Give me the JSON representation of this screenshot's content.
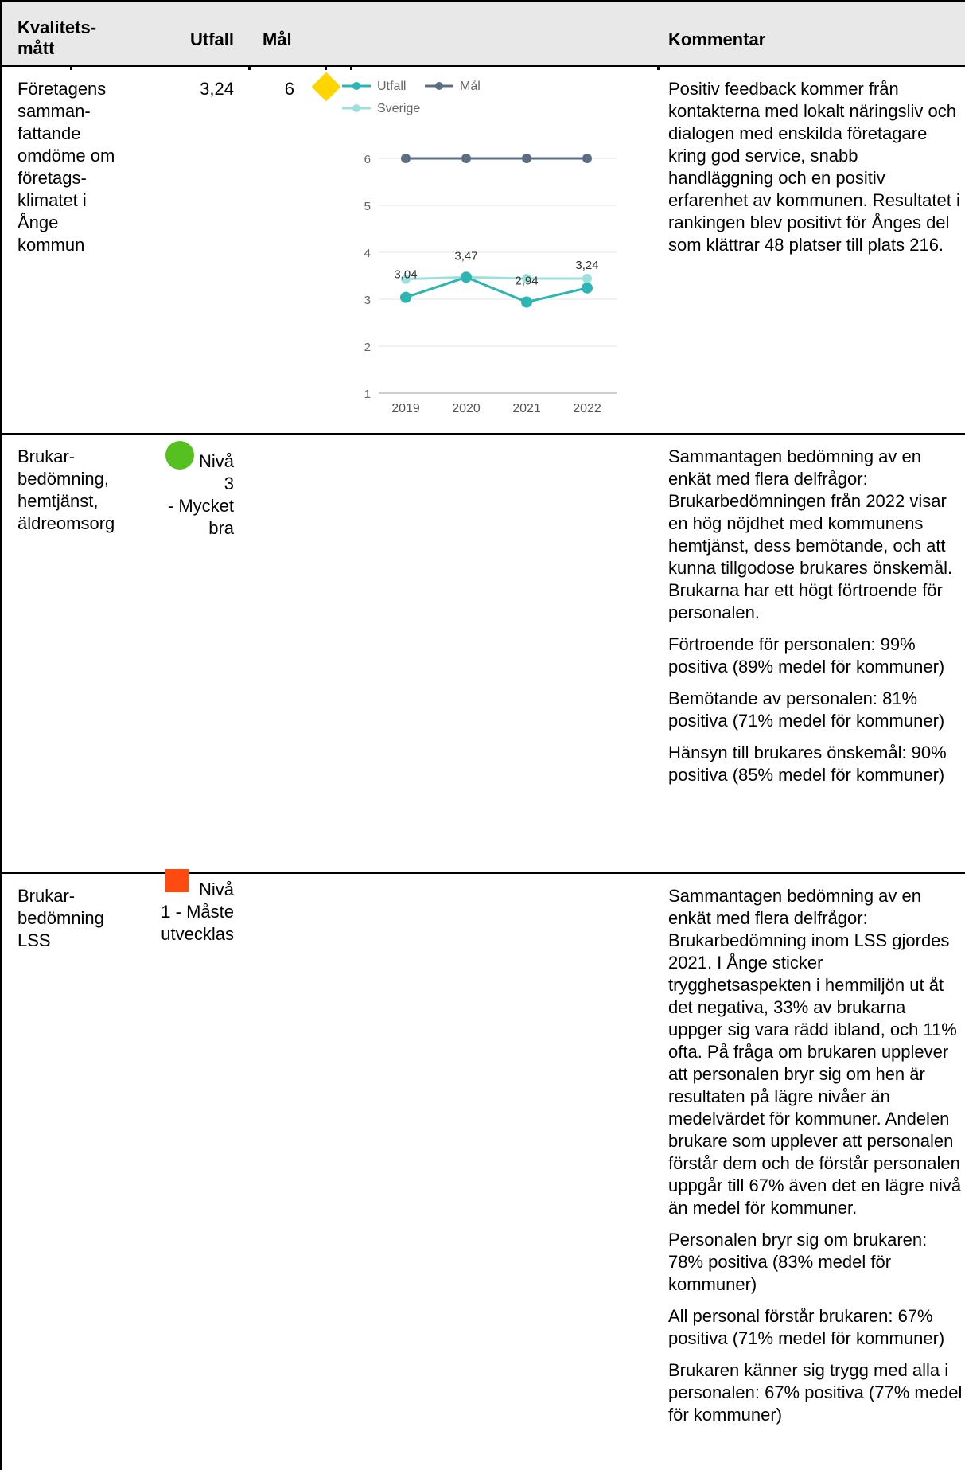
{
  "header": {
    "measure": "Kvalitets-\nmått",
    "outcome": "Utfall",
    "target": "Mål",
    "comment": "Kommentar"
  },
  "rows": [
    {
      "measure": "Företagens\nsamman-\nfattande\nomdöme om\nföretags-\nklimatet i\nÅnge\nkommun",
      "outcome": "3,24",
      "target": "6",
      "status_icon": "yellow-diamond-icon",
      "comment": [
        "Positiv feedback kommer från kontakterna med lokalt näringsliv och dialogen med enskilda företagare kring god service, snabb handläggning och en positiv erfarenhet av kommunen. Resultatet i rankingen blev positivt för Ånges del som klättrar 48 platser till plats 216."
      ]
    },
    {
      "measure": "Brukar-\nbedömning,\nhemtjänst,\näldreomsorg",
      "outcome": "Nivå\n3\n- Mycket\nbra",
      "status_icon": "green-circle-icon",
      "comment": [
        "Sammantagen bedömning av en enkät med flera delfrågor: Brukarbedömningen från 2022 visar en hög nöjdhet med kommunens hemtjänst, dess bemötande, och att kunna tillgodose brukares önskemål. Brukarna har ett högt förtroende för personalen.",
        "Förtroende för personalen: 99% positiva (89% medel för kommuner)",
        "Bemötande av personalen: 81% positiva (71% medel för kommuner)",
        "Hänsyn till brukares önskemål: 90% positiva (85% medel för kommuner)"
      ]
    },
    {
      "measure": "Brukar-\nbedömning\nLSS",
      "outcome": "Nivå\n1 - Måste\nutvecklas",
      "status_icon": "red-square-icon",
      "comment": [
        "Sammantagen bedömning av en enkät med flera delfrågor: Brukarbedömning inom LSS gjordes 2021. I Ånge sticker trygghetsaspekten i hemmiljön ut åt det negativa, 33% av brukarna uppger sig vara rädd ibland, och 11% ofta. På fråga om brukaren upplever att personalen bryr sig om hen är resultaten på lägre nivåer än medelvärdet för kommuner. Andelen brukare som upplever att personalen förstår dem och de förstår personalen uppgår till 67% även det en lägre nivå än medel för kommuner.",
        "Personalen bryr sig om brukaren: 78% positiva (83% medel för kommuner)",
        "All personal förstår brukaren: 67% positiva (71% medel för kommuner)",
        "Brukaren känner sig trygg med alla i personalen: 67% positiva (77% medel för kommuner)"
      ]
    }
  ],
  "colors": {
    "utfall": "#2bb5b3",
    "mal": "#5b6e86",
    "sverige": "#9ee0dc",
    "status_yellow": "#ffd500",
    "status_green": "#55c01f",
    "status_red": "#ff4a10"
  },
  "chart_data": {
    "type": "line",
    "x": [
      "2019",
      "2020",
      "2021",
      "2022"
    ],
    "ylim": [
      1,
      6
    ],
    "yticks": [
      "1",
      "2",
      "3",
      "4",
      "5",
      "6"
    ],
    "legend_position": "top-left",
    "series": [
      {
        "name": "Utfall",
        "values": [
          3.04,
          3.47,
          2.94,
          3.24
        ],
        "labels": [
          "3,04",
          "3,47",
          "2,94",
          "3,24"
        ]
      },
      {
        "name": "Mål",
        "values": [
          6,
          6,
          6,
          6
        ]
      },
      {
        "name": "Sverige",
        "values": [
          3.43,
          3.47,
          3.44,
          3.44
        ]
      }
    ]
  }
}
